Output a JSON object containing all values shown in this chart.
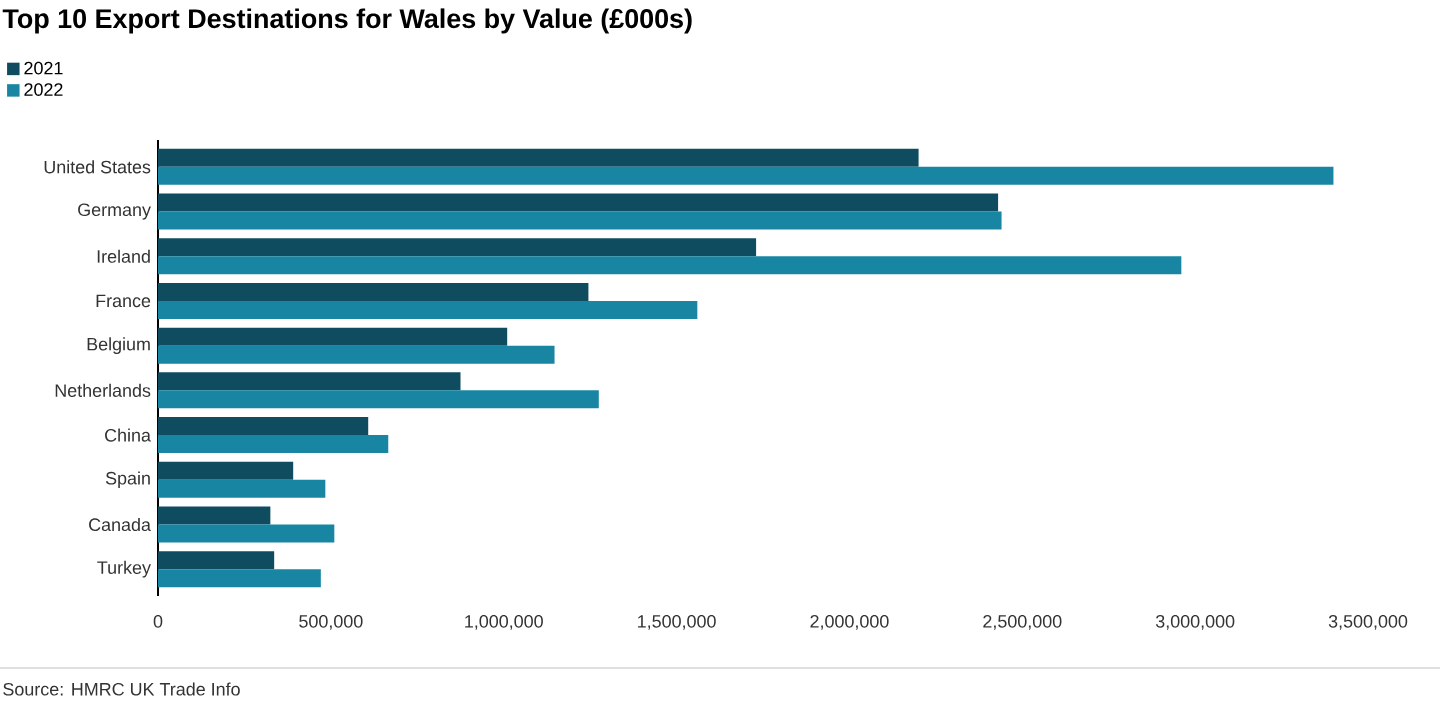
{
  "chart_data": {
    "type": "bar",
    "orientation": "horizontal",
    "title": "Top 10 Export Destinations for Wales by Value (£000s)",
    "categories": [
      "United States",
      "Germany",
      "Ireland",
      "France",
      "Belgium",
      "Netherlands",
      "China",
      "Spain",
      "Canada",
      "Turkey"
    ],
    "series": [
      {
        "name": "2021",
        "color": "#0f4c5f",
        "values": [
          2200000,
          2430000,
          1730000,
          1245000,
          1010000,
          875000,
          608000,
          391000,
          325000,
          336000
        ]
      },
      {
        "name": "2022",
        "color": "#1886a3",
        "values": [
          3400000,
          2440000,
          2960000,
          1560000,
          1147000,
          1275000,
          666000,
          484000,
          510000,
          471000
        ]
      }
    ],
    "xlim": [
      0,
      3500000
    ],
    "xticks": [
      0,
      {
        "value": 500000,
        "label": "500,000"
      },
      {
        "value": 1000000,
        "label": "1,000,000"
      },
      {
        "value": 1500000,
        "label": "1,500,000"
      },
      {
        "value": 2000000,
        "label": "2,000,000"
      },
      {
        "value": 2500000,
        "label": "2,500,000"
      },
      {
        "value": 3000000,
        "label": "3,000,000"
      },
      {
        "value": 3500000,
        "label": "3,500,000"
      }
    ],
    "legend": "top left",
    "grid": false,
    "annotations": [
      "Source: HMRC UK Trade Info"
    ]
  }
}
